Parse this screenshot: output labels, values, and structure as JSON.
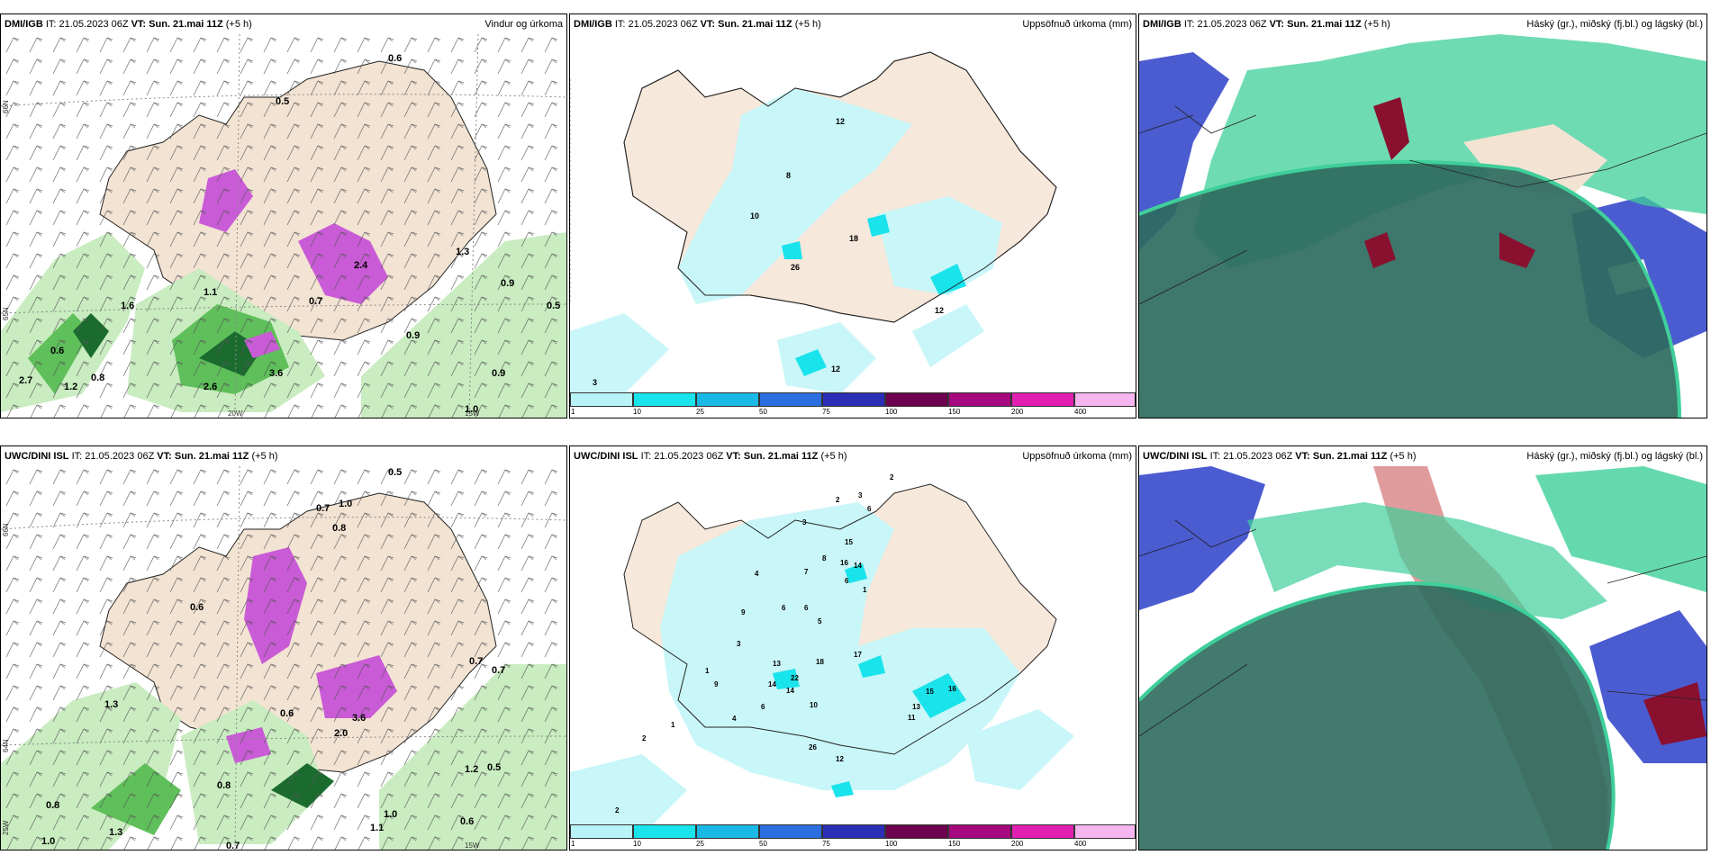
{
  "panels": {
    "top_wind": {
      "model": "DMI/IGB",
      "it": "IT: 21.05.2023 06Z",
      "vt_label": "VT:",
      "vt": "Sun. 21.mai 11Z",
      "lead": "(+5 h)",
      "title": "Vindur og úrkoma"
    },
    "top_precip": {
      "model": "DMI/IGB",
      "it": "IT: 21.05.2023 06Z",
      "vt_label": "VT:",
      "vt": "Sun. 21.mai 11Z",
      "lead": "(+5 h)",
      "title": "Uppsöfnuð úrkoma (mm)"
    },
    "top_cloud": {
      "model": "DMI/IGB",
      "it": "IT: 21.05.2023 06Z",
      "vt_label": "VT:",
      "vt": "Sun. 21.mai 11Z",
      "lead": "(+5 h)",
      "title": "Háský (gr.), miðský (fj.bl.) og lágský (bl.)"
    },
    "bot_wind": {
      "model": "UWC/DINI ISL",
      "it": "IT: 21.05.2023 06Z",
      "vt_label": "VT:",
      "vt": "Sun. 21.mai 11Z",
      "lead": "(+5 h)",
      "title": ""
    },
    "bot_precip": {
      "model": "UWC/DINI ISL",
      "it": "IT: 21.05.2023 06Z",
      "vt_label": "VT:",
      "vt": "Sun. 21.mai 11Z",
      "lead": "(+5 h)",
      "title": "Uppsöfnuð úrkoma (mm)"
    },
    "bot_cloud": {
      "model": "UWC/DINI ISL",
      "it": "IT: 21.05.2023 06Z",
      "vt_label": "VT:",
      "vt": "Sun. 21.mai 11Z",
      "lead": "(+5 h)",
      "title": "Háský (gr.), miðský (fj.bl.) og lágský (bl.)"
    }
  },
  "axis_labels": {
    "lat66": "66N",
    "lat65": "65N",
    "lat64": "64N",
    "lon20": "20W",
    "lon15": "15W",
    "lon25": "25W"
  },
  "colorbar": {
    "ticks": [
      "1",
      "10",
      "25",
      "50",
      "75",
      "100",
      "150",
      "200",
      "400"
    ],
    "colors": [
      "#b8f4f7",
      "#19e3eb",
      "#1ab8e5",
      "#2a6ee0",
      "#2b2fb5",
      "#6d004f",
      "#a6087e",
      "#e11fb0",
      "#f6b5f0"
    ]
  },
  "precip_labels_top": [
    "12",
    "8",
    "10",
    "18",
    "26",
    "12",
    "12",
    "3"
  ],
  "precip_labels_bot": [
    "2",
    "2",
    "3",
    "3",
    "15",
    "8",
    "16",
    "14",
    "6",
    "4",
    "7",
    "6",
    "1",
    "9",
    "3",
    "6",
    "6",
    "5",
    "1",
    "18",
    "17",
    "13",
    "22",
    "14",
    "14",
    "9",
    "11",
    "13",
    "15",
    "16",
    "10",
    "26",
    "12",
    "2",
    "2",
    "4",
    "6",
    "1"
  ],
  "wind_labels_top": [
    "0.6",
    "0.5",
    "0.9",
    "0.7",
    "2.4",
    "1.3",
    "0.9",
    "0.5",
    "0.6",
    "0.8",
    "1.2",
    "2.7",
    "1.1",
    "3.6",
    "2.6",
    "1.0",
    "0.9",
    "1.6"
  ],
  "wind_labels_bot": [
    "0.5",
    "0.7",
    "1.0",
    "0.6",
    "0.8",
    "1.3",
    "0.6",
    "0.8",
    "0.7",
    "0.7",
    "1.2",
    "0.5",
    "2.0",
    "1.0",
    "0.8",
    "1.3",
    "1.0",
    "0.6",
    "0.7",
    "1.1",
    "3.6"
  ],
  "colors": {
    "land": "#f3e3d3",
    "coast": "#222222",
    "precip_light": "#c9f6f8",
    "precip_mid": "#19e3eb",
    "green_light": "#c9ecc0",
    "green_mid": "#5fbf5a",
    "green_dark": "#1b6b2f",
    "purple": "#c95bd6",
    "cloud_dark": "#2e6b5e",
    "cloud_teal": "#3fcf9a",
    "cloud_blue": "#4b5bd0",
    "cloud_red": "#8a1030"
  }
}
